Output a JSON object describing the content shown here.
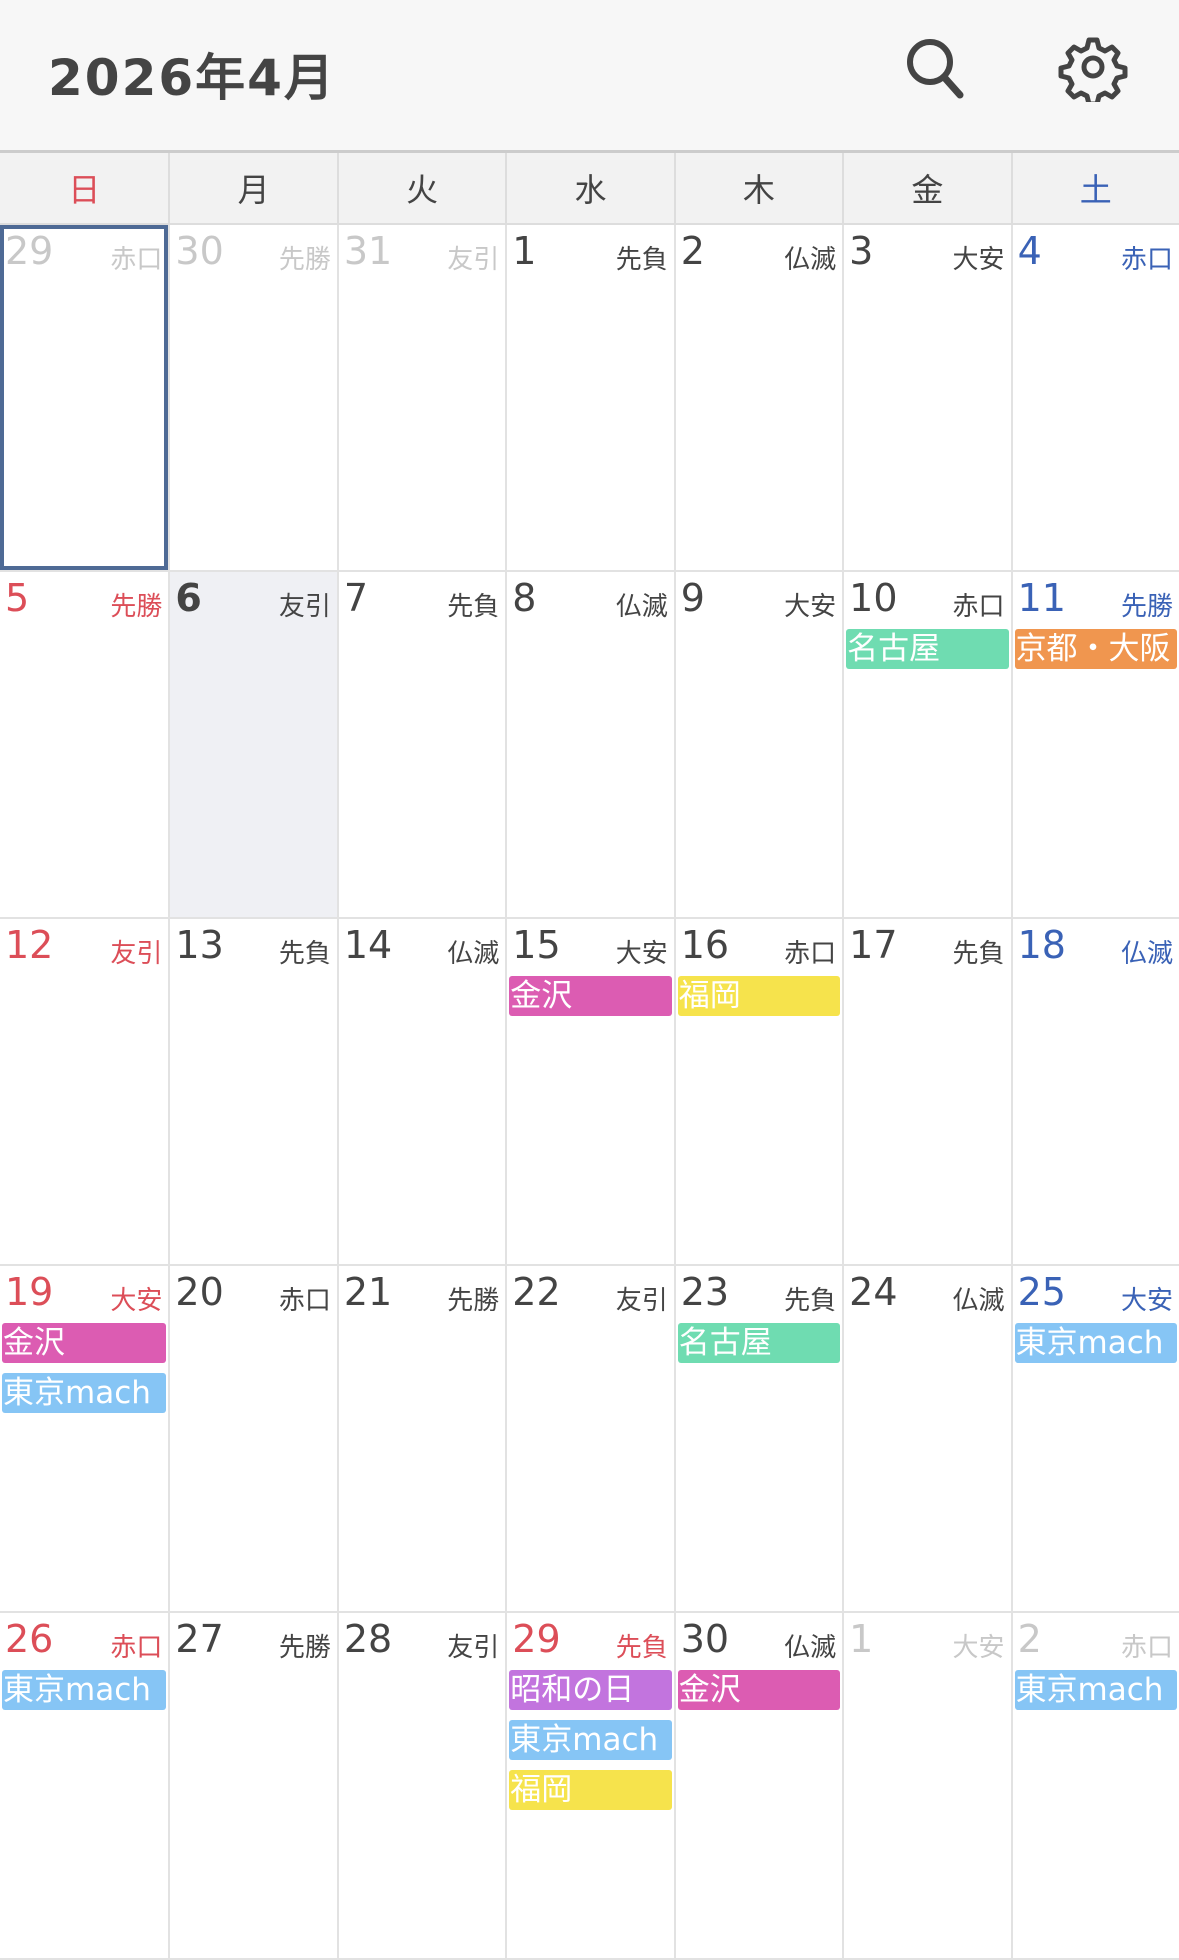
{
  "header": {
    "title": "2026年4月",
    "icons": [
      "search-icon",
      "gear-icon"
    ]
  },
  "weekdays": [
    "日",
    "月",
    "火",
    "水",
    "木",
    "金",
    "土"
  ],
  "colors": {
    "sunday": "#dc4e58",
    "saturday": "#3a62b6",
    "normal": "#444444",
    "other_month": "#c8c8c8",
    "today_bg": "#eff0f4",
    "selected_border": "#4e6a95"
  },
  "weeks": [
    [
      {
        "d": "29",
        "r": "赤口",
        "other": true,
        "selected": true
      },
      {
        "d": "30",
        "r": "先勝",
        "other": true
      },
      {
        "d": "31",
        "r": "友引",
        "other": true
      },
      {
        "d": "1",
        "r": "先負"
      },
      {
        "d": "2",
        "r": "仏滅"
      },
      {
        "d": "3",
        "r": "大安"
      },
      {
        "d": "4",
        "r": "赤口"
      }
    ],
    [
      {
        "d": "5",
        "r": "先勝"
      },
      {
        "d": "6",
        "r": "友引",
        "today": true
      },
      {
        "d": "7",
        "r": "先負"
      },
      {
        "d": "8",
        "r": "仏滅"
      },
      {
        "d": "9",
        "r": "大安"
      },
      {
        "d": "10",
        "r": "赤口",
        "events": [
          {
            "t": "名古屋",
            "c": "#6fdcb1"
          }
        ]
      },
      {
        "d": "11",
        "r": "先勝",
        "events": [
          {
            "t": "京都・大阪",
            "c": "#f0964f"
          }
        ]
      }
    ],
    [
      {
        "d": "12",
        "r": "友引"
      },
      {
        "d": "13",
        "r": "先負"
      },
      {
        "d": "14",
        "r": "仏滅"
      },
      {
        "d": "15",
        "r": "大安",
        "events": [
          {
            "t": "金沢",
            "c": "#dc5cb2"
          }
        ]
      },
      {
        "d": "16",
        "r": "赤口",
        "events": [
          {
            "t": "福岡",
            "c": "#f6e34c"
          }
        ]
      },
      {
        "d": "17",
        "r": "先負"
      },
      {
        "d": "18",
        "r": "仏滅"
      }
    ],
    [
      {
        "d": "19",
        "r": "大安",
        "events": [
          {
            "t": "金沢",
            "c": "#dc5cb2"
          },
          {
            "t": "東京mach",
            "c": "#86c5f5"
          }
        ]
      },
      {
        "d": "20",
        "r": "赤口"
      },
      {
        "d": "21",
        "r": "先勝"
      },
      {
        "d": "22",
        "r": "友引"
      },
      {
        "d": "23",
        "r": "先負",
        "events": [
          {
            "t": "名古屋",
            "c": "#6fdcb1"
          }
        ]
      },
      {
        "d": "24",
        "r": "仏滅"
      },
      {
        "d": "25",
        "r": "大安",
        "events": [
          {
            "t": "東京mach",
            "c": "#86c5f5"
          }
        ]
      }
    ],
    [
      {
        "d": "26",
        "r": "赤口",
        "events": [
          {
            "t": "東京mach",
            "c": "#86c5f5"
          }
        ]
      },
      {
        "d": "27",
        "r": "先勝"
      },
      {
        "d": "28",
        "r": "友引"
      },
      {
        "d": "29",
        "r": "先負",
        "holiday": true,
        "events": [
          {
            "t": "昭和の日",
            "c": "#c274de"
          },
          {
            "t": "東京mach",
            "c": "#86c5f5"
          },
          {
            "t": "福岡",
            "c": "#f6e34c"
          }
        ]
      },
      {
        "d": "30",
        "r": "仏滅",
        "events": [
          {
            "t": "金沢",
            "c": "#dc5cb2"
          }
        ]
      },
      {
        "d": "1",
        "r": "大安",
        "other": true
      },
      {
        "d": "2",
        "r": "赤口",
        "other": true,
        "events": [
          {
            "t": "東京mach",
            "c": "#86c5f5"
          }
        ]
      }
    ]
  ]
}
